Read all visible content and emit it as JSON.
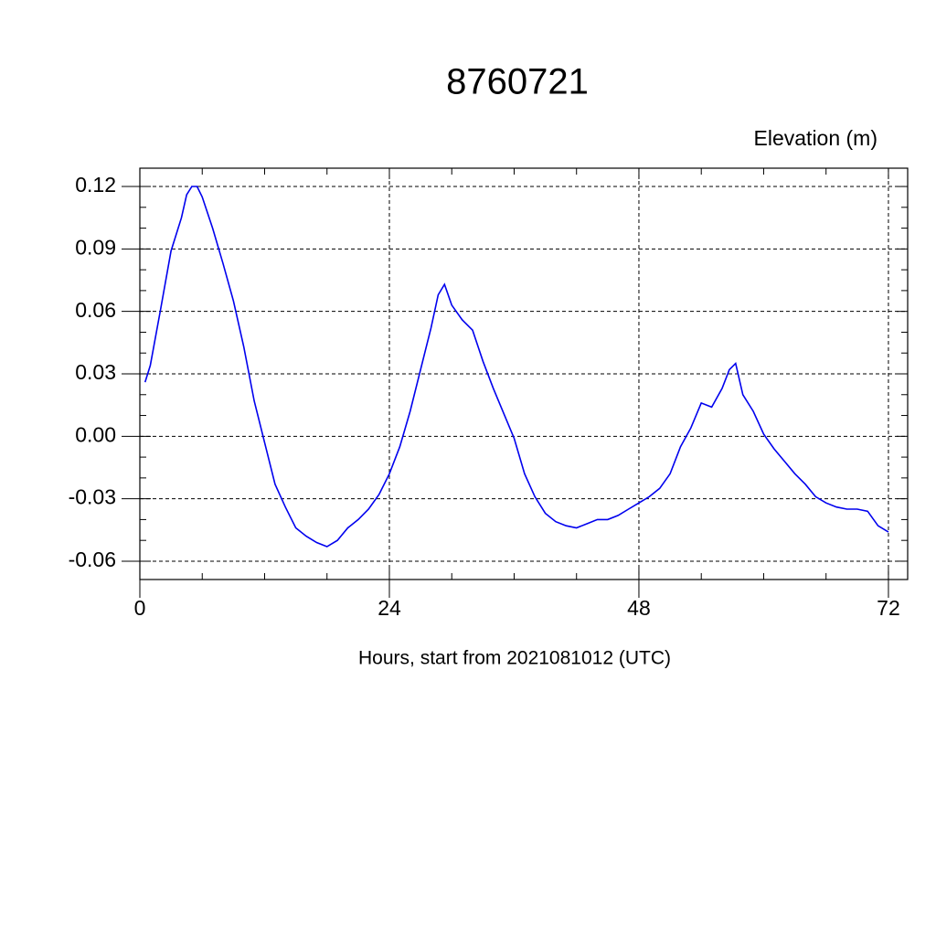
{
  "chart_data": {
    "type": "line",
    "title": "8760721",
    "subtitle": "Elevation (m)",
    "xlabel": "Hours, start from 2021081012 (UTC)",
    "xlim": [
      0,
      73.85
    ],
    "ylim": [
      -0.0688,
      0.1288
    ],
    "xticks": [
      0,
      24,
      48,
      72
    ],
    "yticks": [
      0.12,
      0.09,
      0.06,
      0.03,
      {
        "value": 0,
        "label": "0.00"
      },
      -0.03,
      -0.06
    ],
    "grid": true,
    "x": [
      0.5,
      1,
      2,
      3,
      4,
      4.5,
      5,
      5.5,
      6,
      7,
      8,
      9,
      10,
      11,
      12,
      13,
      14,
      15,
      16,
      17,
      18,
      19,
      20,
      21,
      22,
      23,
      24,
      25,
      26,
      27,
      28,
      28.7,
      29.3,
      30,
      31,
      32,
      33,
      34,
      35,
      36,
      37,
      38,
      39,
      40,
      41,
      42,
      43,
      44,
      45,
      46,
      47,
      48,
      49,
      50,
      51,
      52,
      53,
      54,
      55,
      56,
      56.7,
      57.3,
      58,
      59,
      60,
      61,
      62,
      63,
      64,
      65,
      66,
      67,
      68,
      69,
      70,
      71,
      72
    ],
    "series": [
      {
        "name": "Elevation",
        "color": "#0000ee",
        "values": [
          0.026,
          0.034,
          0.061,
          0.089,
          0.105,
          0.116,
          0.12,
          0.12,
          0.115,
          0.1,
          0.083,
          0.065,
          0.043,
          0.017,
          -0.003,
          -0.023,
          -0.034,
          -0.044,
          -0.048,
          -0.051,
          -0.053,
          -0.05,
          -0.044,
          -0.04,
          -0.035,
          -0.028,
          -0.018,
          -0.005,
          0.012,
          0.032,
          0.052,
          0.068,
          0.073,
          0.063,
          0.056,
          0.051,
          0.036,
          0.023,
          0.011,
          -0.001,
          -0.018,
          -0.029,
          -0.037,
          -0.041,
          -0.043,
          -0.044,
          -0.042,
          -0.04,
          -0.04,
          -0.038,
          -0.035,
          -0.032,
          -0.029,
          -0.025,
          -0.018,
          -0.005,
          0.004,
          0.016,
          0.014,
          0.023,
          0.032,
          0.035,
          0.02,
          0.012,
          0.001,
          -0.006,
          -0.012,
          -0.018,
          -0.023,
          -0.029,
          -0.032,
          -0.034,
          -0.035,
          -0.035,
          -0.036,
          -0.043,
          -0.046
        ]
      }
    ]
  }
}
